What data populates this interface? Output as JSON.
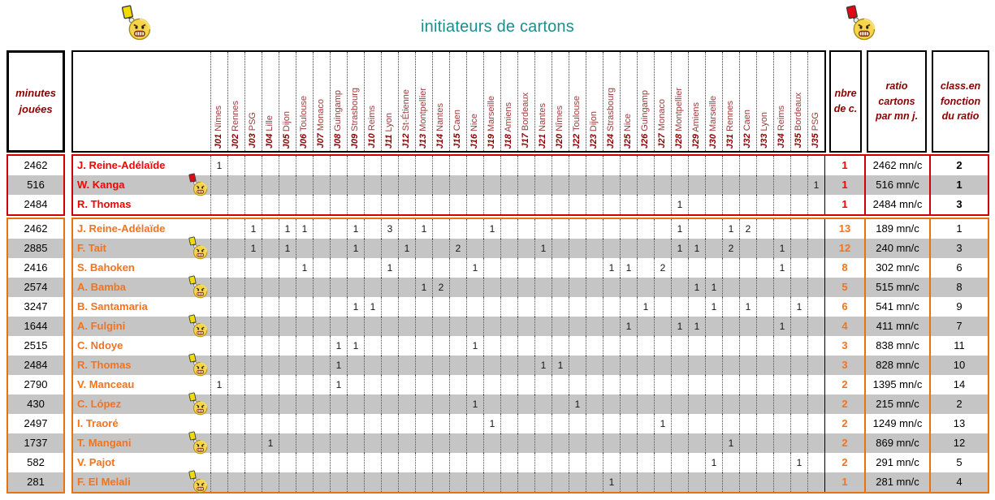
{
  "title": "initiateurs de cartons",
  "colors": {
    "title": "#1b8e8e",
    "yellow_card": "#f2dc00",
    "red_card": "#e30613",
    "gray_band": "#c5c5c5"
  },
  "headers": {
    "minutes": "minutes jouées",
    "nbre": "nbre de c.",
    "ratio": "ratio cartons par mn j.",
    "classement": "class.en fonction du ratio"
  },
  "top_icons": {
    "left": "yellow-card-smiley-icon",
    "right": "red-card-smiley-icon"
  },
  "matchdays": [
    {
      "j": "J01",
      "opp": "Nïmes"
    },
    {
      "j": "J02",
      "opp": "Rennes"
    },
    {
      "j": "J03",
      "opp": "PSG"
    },
    {
      "j": "J04",
      "opp": "Lille"
    },
    {
      "j": "J05",
      "opp": "Dijon"
    },
    {
      "j": "J06",
      "opp": "Toulouse"
    },
    {
      "j": "J07",
      "opp": "Monaco"
    },
    {
      "j": "J08",
      "opp": "Guingamp"
    },
    {
      "j": "J09",
      "opp": "Strasbourg"
    },
    {
      "j": "J10",
      "opp": "Reims"
    },
    {
      "j": "J11",
      "opp": "Lyon"
    },
    {
      "j": "J12",
      "opp": "St-Étienne"
    },
    {
      "j": "J13",
      "opp": "Montpellier"
    },
    {
      "j": "J14",
      "opp": "Nantes"
    },
    {
      "j": "J15",
      "opp": "Caen"
    },
    {
      "j": "J16",
      "opp": "Nice"
    },
    {
      "j": "J19",
      "opp": "Marseille"
    },
    {
      "j": "J18",
      "opp": "Amiens"
    },
    {
      "j": "J17",
      "opp": "Bordeaux"
    },
    {
      "j": "J21",
      "opp": "Nantes"
    },
    {
      "j": "J20",
      "opp": "Nîmes"
    },
    {
      "j": "J22",
      "opp": "Toulouse"
    },
    {
      "j": "J23",
      "opp": "Dijon"
    },
    {
      "j": "J24",
      "opp": "Strasbourg"
    },
    {
      "j": "J25",
      "opp": "Nice"
    },
    {
      "j": "J26",
      "opp": "Guingamp"
    },
    {
      "j": "J27",
      "opp": "Monaco"
    },
    {
      "j": "J28",
      "opp": "Montpellier"
    },
    {
      "j": "J29",
      "opp": "Amiens"
    },
    {
      "j": "J30",
      "opp": "Marseille"
    },
    {
      "j": "J31",
      "opp": "Rennes"
    },
    {
      "j": "J32",
      "opp": "Caen"
    },
    {
      "j": "J33",
      "opp": "Lyon"
    },
    {
      "j": "J34",
      "opp": "Reims"
    },
    {
      "j": "J35",
      "opp": "Bordeaux"
    },
    {
      "j": "J35",
      "opp": "PSG"
    }
  ],
  "groups": [
    {
      "name": "red-cards",
      "border_color": "#d10000",
      "text_color": "#ff0000",
      "rank_bold": true,
      "rows": [
        {
          "minutes": "2462",
          "player": "J. Reine-Adélaïde",
          "icon": null,
          "shaded": false,
          "cards": {
            "1": "1"
          },
          "nbre": "1",
          "ratio": "2462 mn/c",
          "rank": "2"
        },
        {
          "minutes": "516",
          "player": "W. Kanga",
          "icon": "red-card-smiley-icon",
          "shaded": true,
          "cards": {
            "36": "1"
          },
          "nbre": "1",
          "ratio": "516 mn/c",
          "rank": "1"
        },
        {
          "minutes": "2484",
          "player": "R. Thomas",
          "icon": null,
          "shaded": false,
          "cards": {
            "28": "1"
          },
          "nbre": "1",
          "ratio": "2484 mn/c",
          "rank": "3"
        }
      ]
    },
    {
      "name": "yellow-cards",
      "border_color": "#e8730e",
      "text_color": "#f4731c",
      "rank_bold": false,
      "rows": [
        {
          "minutes": "2462",
          "player": "J. Reine-Adélaïde",
          "icon": null,
          "shaded": false,
          "cards": {
            "3": "1",
            "5": "1",
            "6": "1",
            "9": "1",
            "11": "3",
            "13": "1",
            "17": "1",
            "28": "1",
            "31": "1",
            "32": "2"
          },
          "nbre": "13",
          "ratio": "189 mn/c",
          "rank": "1"
        },
        {
          "minutes": "2885",
          "player": "F. Tait",
          "icon": "yellow-card-smiley-icon",
          "shaded": true,
          "cards": {
            "3": "1",
            "5": "1",
            "9": "1",
            "12": "1",
            "15": "2",
            "20": "1",
            "28": "1",
            "29": "1",
            "31": "2",
            "34": "1"
          },
          "nbre": "12",
          "ratio": "240 mn/c",
          "rank": "3"
        },
        {
          "minutes": "2416",
          "player": "S. Bahoken",
          "icon": null,
          "shaded": false,
          "cards": {
            "6": "1",
            "11": "1",
            "16": "1",
            "24": "1",
            "25": "1",
            "27": "2",
            "34": "1"
          },
          "nbre": "8",
          "ratio": "302 mn/c",
          "rank": "6"
        },
        {
          "minutes": "2574",
          "player": "A. Bamba",
          "icon": "yellow-card-smiley-icon",
          "shaded": true,
          "cards": {
            "13": "1",
            "14": "2",
            "29": "1",
            "30": "1"
          },
          "nbre": "5",
          "ratio": "515 mn/c",
          "rank": "8"
        },
        {
          "minutes": "3247",
          "player": "B. Santamaria",
          "icon": null,
          "shaded": false,
          "cards": {
            "9": "1",
            "10": "1",
            "26": "1",
            "30": "1",
            "32": "1",
            "35": "1"
          },
          "nbre": "6",
          "ratio": "541 mn/c",
          "rank": "9"
        },
        {
          "minutes": "1644",
          "player": "A. Fulgini",
          "icon": "yellow-card-smiley-icon",
          "shaded": true,
          "cards": {
            "25": "1",
            "28": "1",
            "29": "1",
            "34": "1"
          },
          "nbre": "4",
          "ratio": "411 mn/c",
          "rank": "7"
        },
        {
          "minutes": "2515",
          "player": "C. Ndoye",
          "icon": null,
          "shaded": false,
          "cards": {
            "8": "1",
            "9": "1",
            "16": "1"
          },
          "nbre": "3",
          "ratio": "838 mn/c",
          "rank": "11"
        },
        {
          "minutes": "2484",
          "player": "R. Thomas",
          "icon": "yellow-card-smiley-icon",
          "shaded": true,
          "cards": {
            "8": "1",
            "20": "1",
            "21": "1"
          },
          "nbre": "3",
          "ratio": "828 mn/c",
          "rank": "10"
        },
        {
          "minutes": "2790",
          "player": "V. Manceau",
          "icon": null,
          "shaded": false,
          "cards": {
            "1": "1",
            "8": "1"
          },
          "nbre": "2",
          "ratio": "1395 mn/c",
          "rank": "14"
        },
        {
          "minutes": "430",
          "player": "C. López",
          "icon": "yellow-card-smiley-icon",
          "shaded": true,
          "cards": {
            "16": "1",
            "22": "1"
          },
          "nbre": "2",
          "ratio": "215 mn/c",
          "rank": "2"
        },
        {
          "minutes": "2497",
          "player": "I. Traoré",
          "icon": null,
          "shaded": false,
          "cards": {
            "17": "1",
            "27": "1"
          },
          "nbre": "2",
          "ratio": "1249 mn/c",
          "rank": "13"
        },
        {
          "minutes": "1737",
          "player": "T. Mangani",
          "icon": "yellow-card-smiley-icon",
          "shaded": true,
          "cards": {
            "4": "1",
            "31": "1"
          },
          "nbre": "2",
          "ratio": "869 mn/c",
          "rank": "12"
        },
        {
          "minutes": "582",
          "player": "V. Pajot",
          "icon": null,
          "shaded": false,
          "cards": {
            "30": "1",
            "35": "1"
          },
          "nbre": "2",
          "ratio": "291 mn/c",
          "rank": "5"
        },
        {
          "minutes": "281",
          "player": "F. El Melali",
          "icon": "yellow-card-smiley-icon",
          "shaded": true,
          "cards": {
            "24": "1"
          },
          "nbre": "1",
          "ratio": "281 mn/c",
          "rank": "4"
        }
      ]
    }
  ]
}
